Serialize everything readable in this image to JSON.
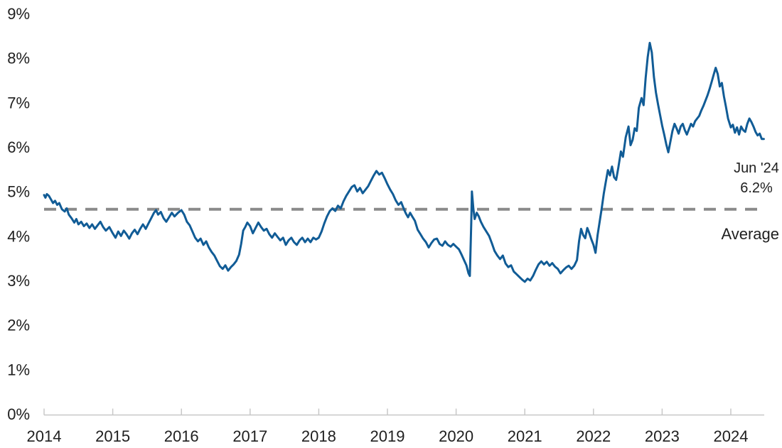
{
  "chart_data": {
    "type": "line",
    "x_axis": {
      "start_year": 2014,
      "ticks": [
        "2014",
        "2015",
        "2016",
        "2017",
        "2018",
        "2019",
        "2020",
        "2021",
        "2022",
        "2023",
        "2024"
      ]
    },
    "y_axis": {
      "min": 0,
      "max": 9,
      "unit": "%",
      "ticks": [
        "0%",
        "1%",
        "2%",
        "3%",
        "4%",
        "5%",
        "6%",
        "7%",
        "8%",
        "9%"
      ]
    },
    "grid": "off",
    "legend": "none",
    "average_line": {
      "value": 4.6,
      "label": "Average",
      "style": "dashed"
    },
    "annotation": {
      "date": "Jun '24",
      "value": "6.2%"
    },
    "colors": {
      "line": "#115C96",
      "average": "#8A8A8A",
      "axis": "#C8C8C8",
      "text": "#1F1F1F"
    },
    "series": [
      {
        "name": "rate",
        "points": [
          [
            2014.0,
            4.92
          ],
          [
            2014.02,
            4.86
          ],
          [
            2014.04,
            4.94
          ],
          [
            2014.07,
            4.9
          ],
          [
            2014.1,
            4.82
          ],
          [
            2014.13,
            4.74
          ],
          [
            2014.16,
            4.79
          ],
          [
            2014.19,
            4.7
          ],
          [
            2014.22,
            4.74
          ],
          [
            2014.26,
            4.6
          ],
          [
            2014.3,
            4.55
          ],
          [
            2014.33,
            4.62
          ],
          [
            2014.36,
            4.48
          ],
          [
            2014.4,
            4.4
          ],
          [
            2014.44,
            4.3
          ],
          [
            2014.47,
            4.38
          ],
          [
            2014.5,
            4.26
          ],
          [
            2014.54,
            4.32
          ],
          [
            2014.58,
            4.22
          ],
          [
            2014.62,
            4.28
          ],
          [
            2014.66,
            4.18
          ],
          [
            2014.7,
            4.26
          ],
          [
            2014.74,
            4.16
          ],
          [
            2014.78,
            4.24
          ],
          [
            2014.82,
            4.32
          ],
          [
            2014.86,
            4.2
          ],
          [
            2014.9,
            4.12
          ],
          [
            2014.95,
            4.2
          ],
          [
            2015.0,
            4.06
          ],
          [
            2015.04,
            3.96
          ],
          [
            2015.08,
            4.1
          ],
          [
            2015.12,
            4.0
          ],
          [
            2015.16,
            4.12
          ],
          [
            2015.2,
            4.04
          ],
          [
            2015.24,
            3.94
          ],
          [
            2015.28,
            4.06
          ],
          [
            2015.32,
            4.14
          ],
          [
            2015.36,
            4.04
          ],
          [
            2015.4,
            4.16
          ],
          [
            2015.44,
            4.26
          ],
          [
            2015.48,
            4.16
          ],
          [
            2015.52,
            4.28
          ],
          [
            2015.56,
            4.4
          ],
          [
            2015.6,
            4.52
          ],
          [
            2015.63,
            4.58
          ],
          [
            2015.66,
            4.48
          ],
          [
            2015.7,
            4.54
          ],
          [
            2015.74,
            4.4
          ],
          [
            2015.78,
            4.32
          ],
          [
            2015.82,
            4.42
          ],
          [
            2015.86,
            4.52
          ],
          [
            2015.9,
            4.44
          ],
          [
            2015.95,
            4.52
          ],
          [
            2016.0,
            4.58
          ],
          [
            2016.04,
            4.48
          ],
          [
            2016.08,
            4.32
          ],
          [
            2016.12,
            4.24
          ],
          [
            2016.16,
            4.1
          ],
          [
            2016.2,
            3.96
          ],
          [
            2016.24,
            3.88
          ],
          [
            2016.28,
            3.94
          ],
          [
            2016.32,
            3.8
          ],
          [
            2016.36,
            3.88
          ],
          [
            2016.4,
            3.74
          ],
          [
            2016.44,
            3.64
          ],
          [
            2016.48,
            3.56
          ],
          [
            2016.52,
            3.44
          ],
          [
            2016.56,
            3.32
          ],
          [
            2016.6,
            3.26
          ],
          [
            2016.64,
            3.34
          ],
          [
            2016.68,
            3.22
          ],
          [
            2016.72,
            3.3
          ],
          [
            2016.76,
            3.36
          ],
          [
            2016.8,
            3.44
          ],
          [
            2016.84,
            3.58
          ],
          [
            2016.87,
            3.82
          ],
          [
            2016.9,
            4.12
          ],
          [
            2016.93,
            4.2
          ],
          [
            2016.96,
            4.3
          ],
          [
            2017.0,
            4.22
          ],
          [
            2017.04,
            4.06
          ],
          [
            2017.08,
            4.18
          ],
          [
            2017.12,
            4.3
          ],
          [
            2017.16,
            4.2
          ],
          [
            2017.2,
            4.12
          ],
          [
            2017.24,
            4.16
          ],
          [
            2017.28,
            4.04
          ],
          [
            2017.32,
            3.96
          ],
          [
            2017.36,
            4.06
          ],
          [
            2017.4,
            3.98
          ],
          [
            2017.44,
            3.9
          ],
          [
            2017.48,
            3.96
          ],
          [
            2017.52,
            3.8
          ],
          [
            2017.56,
            3.9
          ],
          [
            2017.6,
            3.96
          ],
          [
            2017.64,
            3.86
          ],
          [
            2017.68,
            3.8
          ],
          [
            2017.72,
            3.9
          ],
          [
            2017.76,
            3.96
          ],
          [
            2017.8,
            3.86
          ],
          [
            2017.84,
            3.94
          ],
          [
            2017.88,
            3.86
          ],
          [
            2017.92,
            3.96
          ],
          [
            2017.96,
            3.92
          ],
          [
            2018.0,
            3.96
          ],
          [
            2018.04,
            4.1
          ],
          [
            2018.08,
            4.28
          ],
          [
            2018.12,
            4.44
          ],
          [
            2018.16,
            4.56
          ],
          [
            2018.2,
            4.62
          ],
          [
            2018.24,
            4.56
          ],
          [
            2018.28,
            4.68
          ],
          [
            2018.32,
            4.62
          ],
          [
            2018.36,
            4.78
          ],
          [
            2018.4,
            4.9
          ],
          [
            2018.44,
            5.0
          ],
          [
            2018.48,
            5.1
          ],
          [
            2018.52,
            5.14
          ],
          [
            2018.56,
            5.0
          ],
          [
            2018.6,
            5.08
          ],
          [
            2018.64,
            4.96
          ],
          [
            2018.68,
            5.04
          ],
          [
            2018.72,
            5.12
          ],
          [
            2018.76,
            5.24
          ],
          [
            2018.8,
            5.36
          ],
          [
            2018.84,
            5.46
          ],
          [
            2018.88,
            5.38
          ],
          [
            2018.92,
            5.42
          ],
          [
            2018.96,
            5.3
          ],
          [
            2019.0,
            5.16
          ],
          [
            2019.04,
            5.04
          ],
          [
            2019.08,
            4.94
          ],
          [
            2019.12,
            4.8
          ],
          [
            2019.16,
            4.7
          ],
          [
            2019.2,
            4.76
          ],
          [
            2019.24,
            4.6
          ],
          [
            2019.27,
            4.5
          ],
          [
            2019.3,
            4.42
          ],
          [
            2019.33,
            4.52
          ],
          [
            2019.36,
            4.44
          ],
          [
            2019.4,
            4.34
          ],
          [
            2019.44,
            4.14
          ],
          [
            2019.48,
            4.04
          ],
          [
            2019.52,
            3.94
          ],
          [
            2019.56,
            3.86
          ],
          [
            2019.6,
            3.74
          ],
          [
            2019.64,
            3.84
          ],
          [
            2019.68,
            3.92
          ],
          [
            2019.72,
            3.94
          ],
          [
            2019.76,
            3.82
          ],
          [
            2019.8,
            3.78
          ],
          [
            2019.84,
            3.88
          ],
          [
            2019.88,
            3.8
          ],
          [
            2019.92,
            3.76
          ],
          [
            2019.96,
            3.82
          ],
          [
            2020.0,
            3.76
          ],
          [
            2020.04,
            3.7
          ],
          [
            2020.08,
            3.58
          ],
          [
            2020.12,
            3.44
          ],
          [
            2020.15,
            3.34
          ],
          [
            2020.18,
            3.16
          ],
          [
            2020.2,
            3.1
          ],
          [
            2020.22,
            4.3
          ],
          [
            2020.23,
            5.0
          ],
          [
            2020.25,
            4.62
          ],
          [
            2020.27,
            4.38
          ],
          [
            2020.3,
            4.52
          ],
          [
            2020.33,
            4.44
          ],
          [
            2020.36,
            4.32
          ],
          [
            2020.4,
            4.2
          ],
          [
            2020.44,
            4.1
          ],
          [
            2020.48,
            4.0
          ],
          [
            2020.52,
            3.84
          ],
          [
            2020.56,
            3.66
          ],
          [
            2020.6,
            3.56
          ],
          [
            2020.64,
            3.48
          ],
          [
            2020.68,
            3.56
          ],
          [
            2020.72,
            3.38
          ],
          [
            2020.76,
            3.3
          ],
          [
            2020.8,
            3.34
          ],
          [
            2020.84,
            3.2
          ],
          [
            2020.88,
            3.14
          ],
          [
            2020.92,
            3.08
          ],
          [
            2020.96,
            3.02
          ],
          [
            2021.0,
            2.97
          ],
          [
            2021.04,
            3.04
          ],
          [
            2021.08,
            3.0
          ],
          [
            2021.12,
            3.1
          ],
          [
            2021.16,
            3.24
          ],
          [
            2021.2,
            3.36
          ],
          [
            2021.24,
            3.43
          ],
          [
            2021.28,
            3.36
          ],
          [
            2021.32,
            3.42
          ],
          [
            2021.36,
            3.33
          ],
          [
            2021.4,
            3.39
          ],
          [
            2021.44,
            3.31
          ],
          [
            2021.48,
            3.26
          ],
          [
            2021.52,
            3.16
          ],
          [
            2021.56,
            3.23
          ],
          [
            2021.6,
            3.29
          ],
          [
            2021.64,
            3.33
          ],
          [
            2021.68,
            3.26
          ],
          [
            2021.72,
            3.33
          ],
          [
            2021.76,
            3.46
          ],
          [
            2021.79,
            3.88
          ],
          [
            2021.82,
            4.16
          ],
          [
            2021.85,
            4.02
          ],
          [
            2021.88,
            3.95
          ],
          [
            2021.91,
            4.18
          ],
          [
            2021.94,
            4.06
          ],
          [
            2021.97,
            3.92
          ],
          [
            2022.0,
            3.8
          ],
          [
            2022.03,
            3.62
          ],
          [
            2022.06,
            4.02
          ],
          [
            2022.09,
            4.32
          ],
          [
            2022.12,
            4.62
          ],
          [
            2022.15,
            4.95
          ],
          [
            2022.18,
            5.22
          ],
          [
            2022.21,
            5.48
          ],
          [
            2022.24,
            5.36
          ],
          [
            2022.27,
            5.56
          ],
          [
            2022.3,
            5.32
          ],
          [
            2022.33,
            5.26
          ],
          [
            2022.36,
            5.52
          ],
          [
            2022.4,
            5.9
          ],
          [
            2022.43,
            5.78
          ],
          [
            2022.47,
            6.22
          ],
          [
            2022.51,
            6.46
          ],
          [
            2022.54,
            6.04
          ],
          [
            2022.57,
            6.16
          ],
          [
            2022.6,
            6.42
          ],
          [
            2022.63,
            6.36
          ],
          [
            2022.66,
            6.88
          ],
          [
            2022.7,
            7.1
          ],
          [
            2022.73,
            6.94
          ],
          [
            2022.76,
            7.55
          ],
          [
            2022.79,
            8.02
          ],
          [
            2022.82,
            8.34
          ],
          [
            2022.85,
            8.12
          ],
          [
            2022.88,
            7.58
          ],
          [
            2022.91,
            7.22
          ],
          [
            2022.94,
            6.96
          ],
          [
            2022.97,
            6.72
          ],
          [
            2023.0,
            6.48
          ],
          [
            2023.03,
            6.28
          ],
          [
            2023.06,
            6.06
          ],
          [
            2023.09,
            5.88
          ],
          [
            2023.12,
            6.12
          ],
          [
            2023.15,
            6.36
          ],
          [
            2023.18,
            6.52
          ],
          [
            2023.21,
            6.42
          ],
          [
            2023.24,
            6.3
          ],
          [
            2023.27,
            6.46
          ],
          [
            2023.3,
            6.52
          ],
          [
            2023.33,
            6.38
          ],
          [
            2023.36,
            6.28
          ],
          [
            2023.39,
            6.4
          ],
          [
            2023.42,
            6.52
          ],
          [
            2023.45,
            6.46
          ],
          [
            2023.48,
            6.58
          ],
          [
            2023.51,
            6.64
          ],
          [
            2023.54,
            6.7
          ],
          [
            2023.57,
            6.82
          ],
          [
            2023.6,
            6.92
          ],
          [
            2023.63,
            7.04
          ],
          [
            2023.66,
            7.16
          ],
          [
            2023.69,
            7.3
          ],
          [
            2023.72,
            7.46
          ],
          [
            2023.75,
            7.62
          ],
          [
            2023.78,
            7.78
          ],
          [
            2023.81,
            7.64
          ],
          [
            2023.84,
            7.36
          ],
          [
            2023.87,
            7.44
          ],
          [
            2023.9,
            7.14
          ],
          [
            2023.93,
            6.9
          ],
          [
            2023.96,
            6.64
          ],
          [
            2024.0,
            6.44
          ],
          [
            2024.03,
            6.5
          ],
          [
            2024.06,
            6.32
          ],
          [
            2024.09,
            6.44
          ],
          [
            2024.12,
            6.28
          ],
          [
            2024.15,
            6.46
          ],
          [
            2024.18,
            6.38
          ],
          [
            2024.21,
            6.34
          ],
          [
            2024.24,
            6.52
          ],
          [
            2024.27,
            6.64
          ],
          [
            2024.3,
            6.56
          ],
          [
            2024.33,
            6.46
          ],
          [
            2024.36,
            6.34
          ],
          [
            2024.39,
            6.26
          ],
          [
            2024.42,
            6.3
          ],
          [
            2024.45,
            6.18
          ],
          [
            2024.48,
            6.18
          ]
        ]
      }
    ]
  }
}
